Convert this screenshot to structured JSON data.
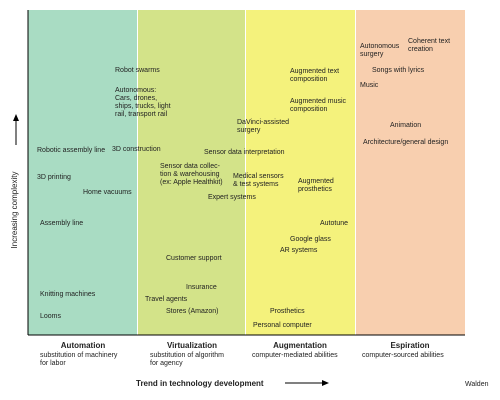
{
  "y_axis_label": "Increasing complexity",
  "x_axis_label": "Trend in technology development",
  "credit": "Walden",
  "zones": [
    {
      "title": "Automation",
      "subtitle": [
        "substitution of machinery",
        "for labor"
      ]
    },
    {
      "title": "Virtualization",
      "subtitle": [
        "substitution of algorithm",
        "for agency"
      ]
    },
    {
      "title": "Augmentation",
      "subtitle": [
        "computer-mediated abilities"
      ]
    },
    {
      "title": "Espiration",
      "subtitle": [
        "computer-sourced abilities"
      ]
    }
  ],
  "items": [
    [
      "Robotic assembly line"
    ],
    [
      "3D printing"
    ],
    [
      "Home vacuums"
    ],
    [
      "Assembly line"
    ],
    [
      "Knitting machines"
    ],
    [
      "Looms"
    ],
    [
      "Robot swarms"
    ],
    [
      "Autonomous:",
      "Cars, drones,",
      "ships, trucks, light",
      "rail, transport rail"
    ],
    [
      "3D construction"
    ],
    [
      "Sensor data collec-",
      "tion & warehousing",
      "(ex: Apple Healthkit)"
    ],
    [
      "Expert systems"
    ],
    [
      "Customer support"
    ],
    [
      "Insurance"
    ],
    [
      "Travel agents"
    ],
    [
      "Stores (Amazon)"
    ],
    [
      "DaVinci-assisted",
      "surgery"
    ],
    [
      "Sensor data interpretation"
    ],
    [
      "Medical sensors",
      "& test systems"
    ],
    [
      "Augmented text",
      "composition"
    ],
    [
      "Augmented music",
      "composition"
    ],
    [
      "Augmented",
      "prosthetics"
    ],
    [
      "Autotune"
    ],
    [
      "Google glass"
    ],
    [
      "AR systems"
    ],
    [
      "Prosthetics"
    ],
    [
      "Personal computer"
    ],
    [
      "Autonomous",
      "surgery"
    ],
    [
      "Coherent text",
      "creation"
    ],
    [
      "Songs with lyrics"
    ],
    [
      "Music"
    ],
    [
      "Animation"
    ],
    [
      "Architecture/general design"
    ]
  ]
}
